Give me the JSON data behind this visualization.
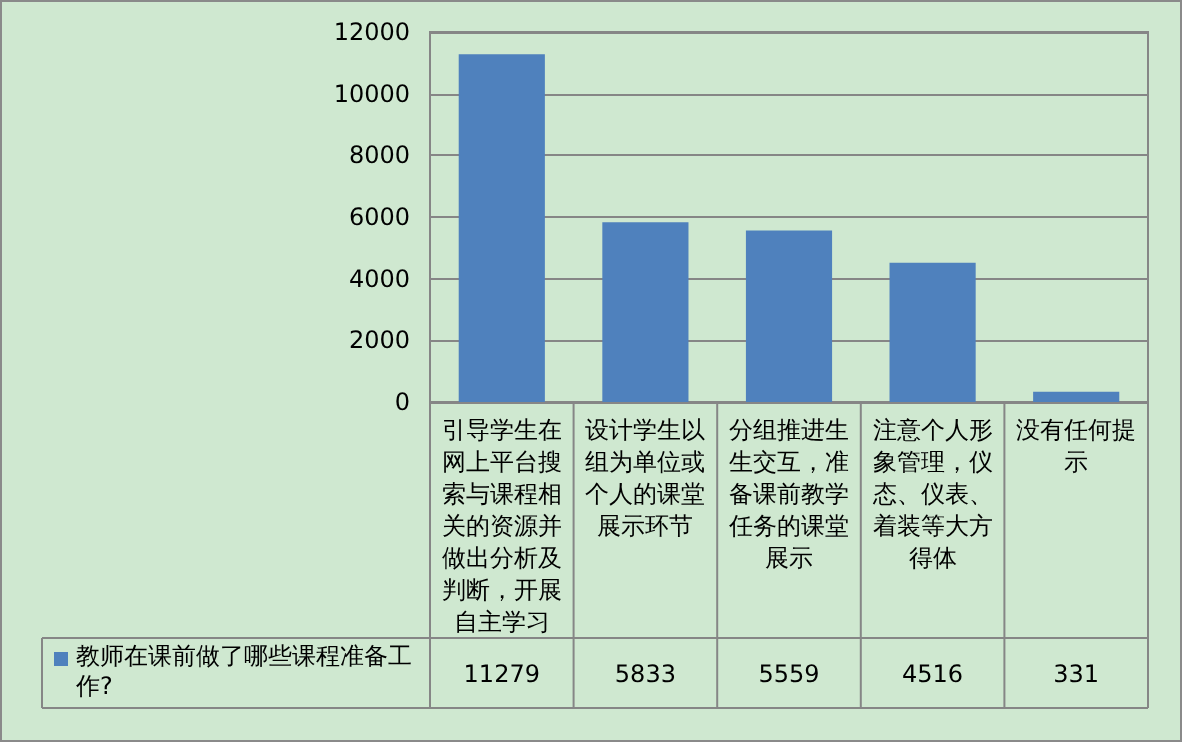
{
  "chart_data": {
    "type": "bar",
    "categories": [
      "引导学生在网上平台搜索与课程相关的资源并做出分析及判断，开展自主学习",
      "设计学生以组为单位或个人的课堂展示环节",
      "分组推进生生交互，准备课前教学任务的课堂展示",
      "注意个人形象管理，仪态、仪表、着装等大方得体",
      "没有任何提示"
    ],
    "series": [
      {
        "name": "教师在课前做了哪些课程准备工作?",
        "color": "#4f81bd",
        "values": [
          11279,
          5833,
          5559,
          4516,
          331
        ]
      }
    ],
    "ylim": [
      0,
      12000
    ],
    "yticks": [
      0,
      2000,
      4000,
      6000,
      8000,
      10000,
      12000
    ],
    "grid": "y",
    "legend": "bottom left",
    "data_labels": true
  }
}
